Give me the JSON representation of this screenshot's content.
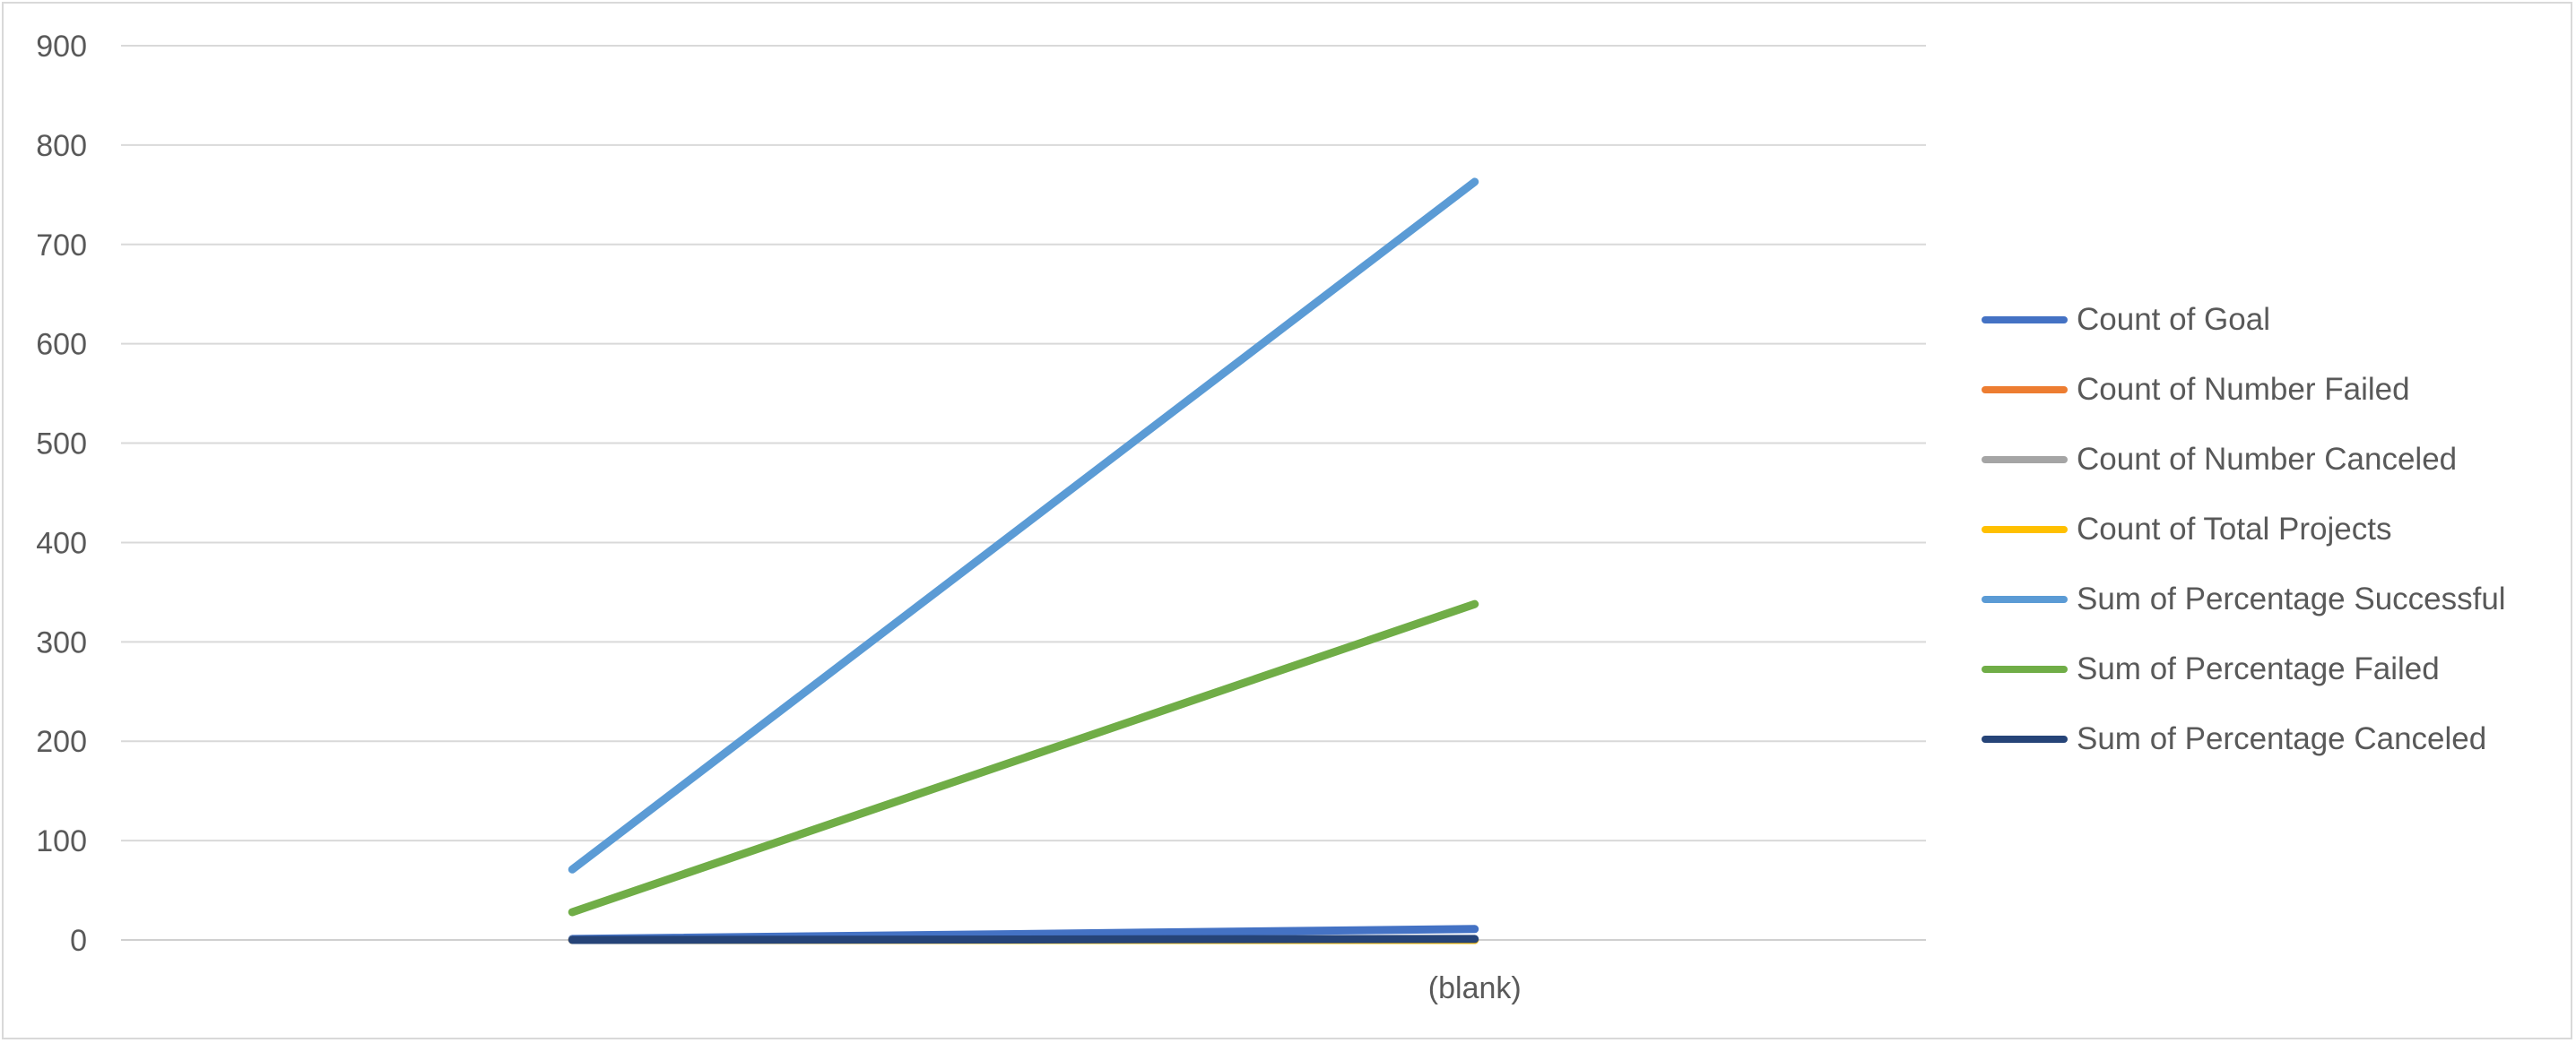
{
  "chart_data": {
    "type": "line",
    "categories": [
      "",
      "(blank)"
    ],
    "ylim": [
      0,
      900
    ],
    "yticks": [
      0,
      100,
      200,
      300,
      400,
      500,
      600,
      700,
      800,
      900
    ],
    "grid": true,
    "legend_position": "right",
    "series": [
      {
        "name": "Count of Goal",
        "color": "#4472C4",
        "values": [
          1,
          11
        ]
      },
      {
        "name": "Count of Number Failed",
        "color": "#ED7D31",
        "values": [
          0,
          0
        ]
      },
      {
        "name": "Count of Number Canceled",
        "color": "#A5A5A5",
        "values": [
          0,
          0
        ]
      },
      {
        "name": "Count of Total Projects",
        "color": "#FFC000",
        "values": [
          0,
          0
        ]
      },
      {
        "name": "Sum of Percentage Successful",
        "color": "#5B9BD5",
        "values": [
          71,
          763
        ]
      },
      {
        "name": "Sum of Percentage Failed",
        "color": "#70AD47",
        "values": [
          28,
          338
        ]
      },
      {
        "name": "Sum of Percentage Canceled",
        "color": "#264478",
        "values": [
          0,
          1
        ]
      }
    ]
  }
}
